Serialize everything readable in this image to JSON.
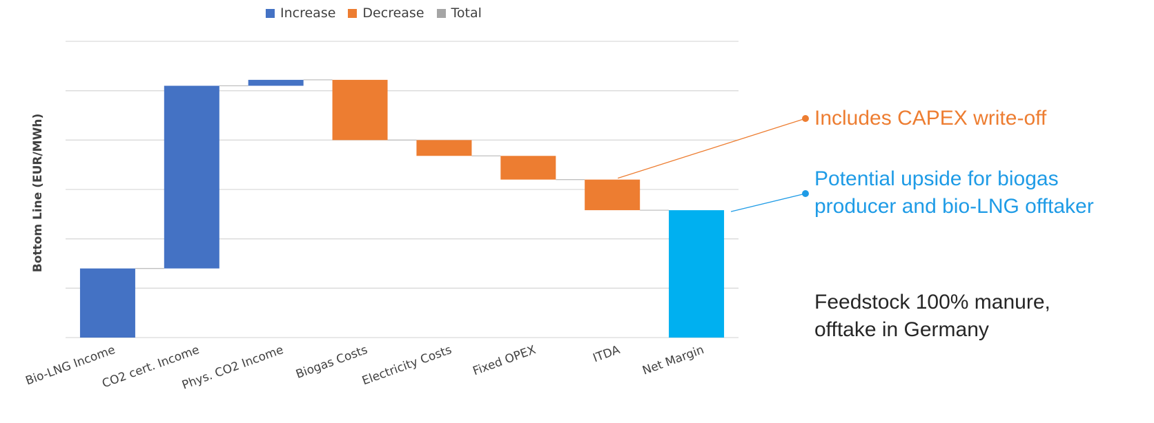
{
  "chart_data": {
    "type": "bar",
    "subtype": "waterfall",
    "title": "",
    "xlabel": "",
    "ylabel": "Bottom Line (EUR/MWh)",
    "y_tick_labels_shown": false,
    "ylim": [
      0,
      6
    ],
    "y_grid_lines": [
      0,
      1,
      2,
      3,
      4,
      5,
      6
    ],
    "grid": true,
    "legend": {
      "placement": "top",
      "entries": [
        {
          "name": "Increase",
          "color": "#4472C4"
        },
        {
          "name": "Decrease",
          "color": "#ED7D31"
        },
        {
          "name": "Total",
          "color": "#A5A5A5"
        }
      ]
    },
    "categories": [
      "Bio-LNG Income",
      "CO2 cert. Income",
      "Phys. CO2 Income",
      "Biogas Costs",
      "Electricity Costs",
      "Fixed OPEX",
      "ITDA",
      "Net Margin"
    ],
    "steps": [
      {
        "category": "Bio-LNG Income",
        "kind": "increase",
        "start": 0,
        "end": 1.4
      },
      {
        "category": "CO2 cert. Income",
        "kind": "increase",
        "start": 1.4,
        "end": 5.1
      },
      {
        "category": "Phys. CO2 Income",
        "kind": "increase",
        "start": 5.1,
        "end": 5.22
      },
      {
        "category": "Biogas Costs",
        "kind": "decrease",
        "start": 5.22,
        "end": 4.0
      },
      {
        "category": "Electricity Costs",
        "kind": "decrease",
        "start": 4.0,
        "end": 3.68
      },
      {
        "category": "Fixed OPEX",
        "kind": "decrease",
        "start": 3.68,
        "end": 3.2
      },
      {
        "category": "ITDA",
        "kind": "decrease",
        "start": 3.2,
        "end": 2.58
      },
      {
        "category": "Net Margin",
        "kind": "total",
        "start": 0,
        "end": 2.58
      }
    ],
    "colors": {
      "increase": "#4472C4",
      "decrease": "#ED7D31",
      "net_margin": "#00B0F0",
      "grid": "#D9D9D9",
      "connector": "#BFBFBF",
      "axis_text": "#404040"
    }
  },
  "annotations": {
    "capex": {
      "text": "Includes CAPEX write-off",
      "color": "#ED7D31",
      "points_to": "ITDA"
    },
    "upside": {
      "lines": [
        "Potential upside for biogas",
        "producer and bio-LNG offtaker"
      ],
      "color": "#1E9BE6",
      "points_to": "Net Margin"
    },
    "note": {
      "lines": [
        "Feedstock 100% manure,",
        "offtake in Germany"
      ]
    }
  }
}
